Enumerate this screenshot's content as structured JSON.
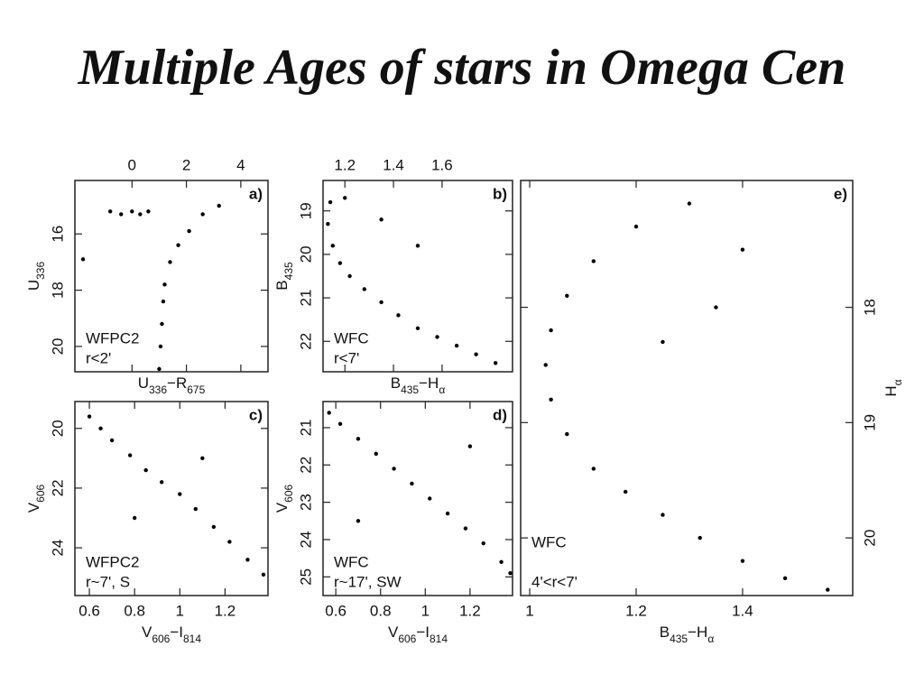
{
  "slide": {
    "title": "Multiple Ages of stars in Omega Cen"
  },
  "chart_data": [
    {
      "type": "scatter",
      "color": "#000000",
      "xaxis_position": "top",
      "yaxis_position": "left",
      "xlabel": [
        "U",
        "336",
        "−R",
        "675"
      ],
      "ylabel": [
        "U",
        "336"
      ],
      "annotations": [
        "a)",
        "WFPC2",
        "r<2'"
      ],
      "xlim": [
        -2.1,
        5.0
      ],
      "xticks": [
        0,
        2,
        4
      ],
      "ylim": [
        20.9,
        14.1
      ],
      "yticks": [
        16,
        18,
        20
      ],
      "x": [
        -0.8,
        -0.4,
        0,
        0.3,
        0.6,
        1.0,
        1.05,
        1.1,
        1.15,
        1.2,
        1.4,
        1.7,
        2.1,
        2.6,
        3.2,
        -1.8
      ],
      "values": [
        15.2,
        15.3,
        15.2,
        15.3,
        15.2,
        20.8,
        20.0,
        19.2,
        18.4,
        17.8,
        17.0,
        16.4,
        15.9,
        15.3,
        15.0,
        16.9
      ]
    },
    {
      "type": "scatter",
      "color": "#000000",
      "xaxis_position": "top",
      "yaxis_position": "left",
      "xlabel": [
        "B",
        "435",
        "−H",
        "α"
      ],
      "ylabel": [
        "B",
        "435"
      ],
      "annotations": [
        "b)",
        "WFC",
        "r<7'"
      ],
      "xlim": [
        1.11,
        1.89
      ],
      "xticks": [
        1.2,
        1.4,
        1.6
      ],
      "ylim": [
        22.7,
        18.3
      ],
      "yticks": [
        19,
        20,
        21,
        22
      ],
      "x": [
        1.14,
        1.13,
        1.15,
        1.18,
        1.22,
        1.28,
        1.35,
        1.42,
        1.5,
        1.58,
        1.66,
        1.74,
        1.82,
        1.2,
        1.35,
        1.5
      ],
      "values": [
        18.8,
        19.3,
        19.8,
        20.2,
        20.5,
        20.8,
        21.1,
        21.4,
        21.7,
        21.9,
        22.1,
        22.3,
        22.5,
        18.7,
        19.2,
        19.8
      ]
    },
    {
      "type": "scatter",
      "color": "#000000",
      "xaxis_position": "bottom",
      "yaxis_position": "left",
      "xlabel": [
        "V",
        "606",
        "−I",
        "814"
      ],
      "ylabel": [
        "V",
        "606"
      ],
      "annotations": [
        "c)",
        "WFPC2",
        "r~7', S"
      ],
      "xlim": [
        0.536,
        1.39
      ],
      "xticks": [
        0.6,
        0.8,
        1,
        1.2
      ],
      "ylim": [
        25.6,
        19.1
      ],
      "yticks": [
        20,
        22,
        24
      ],
      "x": [
        0.6,
        0.65,
        0.7,
        0.78,
        0.85,
        0.92,
        1.0,
        1.07,
        1.15,
        1.22,
        1.3,
        1.37,
        0.8,
        1.1
      ],
      "values": [
        19.6,
        20.0,
        20.4,
        20.9,
        21.4,
        21.8,
        22.2,
        22.7,
        23.3,
        23.8,
        24.4,
        24.9,
        23.0,
        21.0
      ]
    },
    {
      "type": "scatter",
      "color": "#000000",
      "xaxis_position": "bottom",
      "yaxis_position": "left",
      "xlabel": [
        "V",
        "606",
        "−I",
        "814"
      ],
      "ylabel": [
        "V",
        "606"
      ],
      "annotations": [
        "d)",
        "WFC",
        "r~17', SW"
      ],
      "xlim": [
        0.543,
        1.39
      ],
      "xticks": [
        0.6,
        0.8,
        1,
        1.2
      ],
      "ylim": [
        25.5,
        20.3
      ],
      "yticks": [
        21,
        22,
        23,
        24,
        25
      ],
      "x": [
        0.57,
        0.62,
        0.7,
        0.78,
        0.86,
        0.94,
        1.02,
        1.1,
        1.18,
        1.26,
        1.34,
        1.38,
        0.7,
        1.2
      ],
      "values": [
        20.6,
        20.9,
        21.3,
        21.7,
        22.1,
        22.5,
        22.9,
        23.3,
        23.7,
        24.1,
        24.6,
        24.9,
        23.5,
        21.5
      ]
    },
    {
      "type": "scatter",
      "color": "#000000",
      "xaxis_position": "bottom",
      "yaxis_position": "right",
      "xlabel": [
        "B",
        "435",
        "−H",
        "α"
      ],
      "ylabel": [
        "H",
        "α"
      ],
      "annotations": [
        "e)",
        "WFC",
        "4'<r<7'"
      ],
      "xlim": [
        0.983,
        1.607
      ],
      "xticks": [
        1,
        1.2,
        1.4
      ],
      "ylim": [
        20.5,
        16.9
      ],
      "yticks": [
        18,
        19,
        20
      ],
      "x": [
        1.3,
        1.2,
        1.12,
        1.07,
        1.04,
        1.03,
        1.04,
        1.07,
        1.12,
        1.18,
        1.25,
        1.32,
        1.4,
        1.48,
        1.56,
        1.4,
        1.35,
        1.25
      ],
      "values": [
        17.1,
        17.3,
        17.6,
        17.9,
        18.2,
        18.5,
        18.8,
        19.1,
        19.4,
        19.6,
        19.8,
        20.0,
        20.2,
        20.35,
        20.45,
        17.5,
        18.0,
        18.3
      ]
    }
  ]
}
